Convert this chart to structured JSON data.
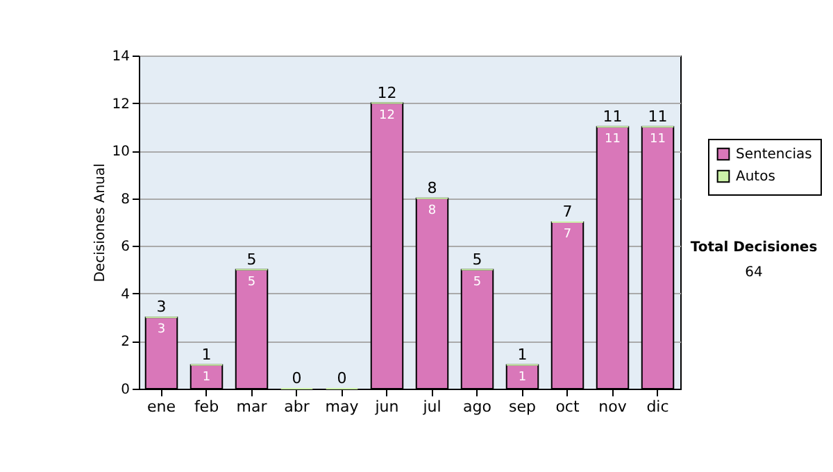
{
  "chart_data": {
    "type": "bar",
    "stacked": true,
    "ylabel": "Decisiones Anual",
    "categories": [
      "ene",
      "feb",
      "mar",
      "abr",
      "may",
      "jun",
      "jul",
      "ago",
      "sep",
      "oct",
      "nov",
      "dic"
    ],
    "series": [
      {
        "name": "Sentencias",
        "color": "#d977b9",
        "values": [
          3,
          1,
          5,
          0,
          0,
          12,
          8,
          5,
          1,
          7,
          11,
          11
        ],
        "value_labels": [
          "3",
          "1",
          "5",
          null,
          null,
          "12",
          "8",
          "5",
          "1",
          "7",
          "11",
          "11"
        ]
      },
      {
        "name": "Autos",
        "color": "#ccf2a8",
        "values": [
          0,
          0,
          0,
          0,
          0,
          0,
          0,
          0,
          0,
          0,
          0,
          0
        ]
      }
    ],
    "totals": [
      "3",
      "1",
      "5",
      "0",
      "0",
      "12",
      "8",
      "5",
      "1",
      "7",
      "11",
      "11"
    ],
    "ylim": [
      0,
      14
    ],
    "yticks": [
      0,
      2,
      4,
      6,
      8,
      10,
      12,
      14
    ],
    "grid": "y",
    "legend": "right",
    "annotations": [
      "Total Decisiones",
      "64"
    ]
  }
}
